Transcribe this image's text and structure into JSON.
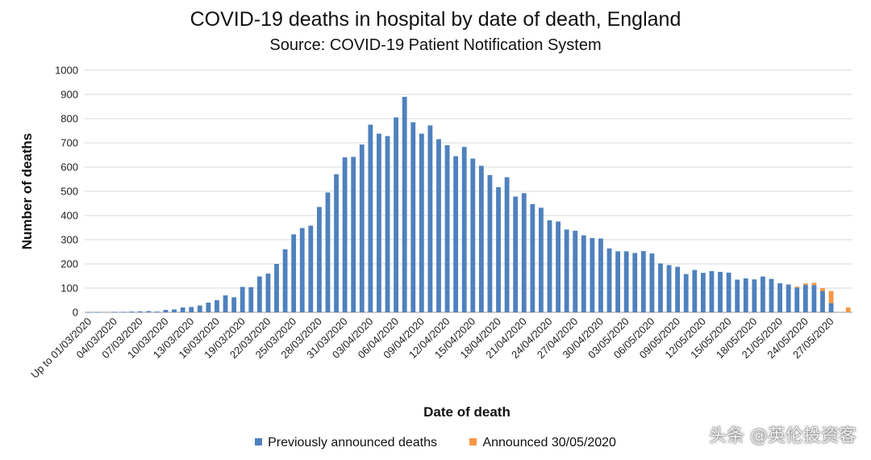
{
  "chart_data": {
    "type": "bar",
    "stacked": true,
    "title": "COVID-19 deaths in hospital by date of death, England",
    "subtitle": "Source: COVID-19 Patient Notification System",
    "xlabel": "Date of death",
    "ylabel": "Number of deaths",
    "ylim": [
      0,
      1000
    ],
    "yticks": [
      0,
      100,
      200,
      300,
      400,
      500,
      600,
      700,
      800,
      900,
      1000
    ],
    "grid": true,
    "legend_position": "bottom",
    "categories": [
      "Up to 01/03/2020",
      "02/03/2020",
      "03/03/2020",
      "04/03/2020",
      "05/03/2020",
      "06/03/2020",
      "07/03/2020",
      "08/03/2020",
      "09/03/2020",
      "10/03/2020",
      "11/03/2020",
      "12/03/2020",
      "13/03/2020",
      "14/03/2020",
      "15/03/2020",
      "16/03/2020",
      "17/03/2020",
      "18/03/2020",
      "19/03/2020",
      "20/03/2020",
      "21/03/2020",
      "22/03/2020",
      "23/03/2020",
      "24/03/2020",
      "25/03/2020",
      "26/03/2020",
      "27/03/2020",
      "28/03/2020",
      "29/03/2020",
      "30/03/2020",
      "31/03/2020",
      "01/04/2020",
      "02/04/2020",
      "03/04/2020",
      "04/04/2020",
      "05/04/2020",
      "06/04/2020",
      "07/04/2020",
      "08/04/2020",
      "09/04/2020",
      "10/04/2020",
      "11/04/2020",
      "12/04/2020",
      "13/04/2020",
      "14/04/2020",
      "15/04/2020",
      "16/04/2020",
      "17/04/2020",
      "18/04/2020",
      "19/04/2020",
      "20/04/2020",
      "21/04/2020",
      "22/04/2020",
      "23/04/2020",
      "24/04/2020",
      "25/04/2020",
      "26/04/2020",
      "27/04/2020",
      "28/04/2020",
      "29/04/2020",
      "30/04/2020",
      "01/05/2020",
      "02/05/2020",
      "03/05/2020",
      "04/05/2020",
      "05/05/2020",
      "06/05/2020",
      "07/05/2020",
      "08/05/2020",
      "09/05/2020",
      "10/05/2020",
      "11/05/2020",
      "12/05/2020",
      "13/05/2020",
      "14/05/2020",
      "15/05/2020",
      "16/05/2020",
      "17/05/2020",
      "18/05/2020",
      "19/05/2020",
      "20/05/2020",
      "21/05/2020",
      "22/05/2020",
      "23/05/2020",
      "24/05/2020",
      "25/05/2020",
      "26/05/2020",
      "27/05/2020",
      "28/05/2020",
      "29/05/2020"
    ],
    "tick_labels": [
      "Up to 01/03/2020",
      "04/03/2020",
      "07/03/2020",
      "10/03/2020",
      "13/03/2020",
      "16/03/2020",
      "19/03/2020",
      "22/03/2020",
      "25/03/2020",
      "28/03/2020",
      "31/03/2020",
      "03/04/2020",
      "06/04/2020",
      "09/04/2020",
      "12/04/2020",
      "15/04/2020",
      "18/04/2020",
      "21/04/2020",
      "24/04/2020",
      "27/04/2020",
      "30/04/2020",
      "03/05/2020",
      "06/05/2020",
      "09/05/2020",
      "12/05/2020",
      "15/05/2020",
      "18/05/2020",
      "21/05/2020",
      "24/05/2020",
      "27/05/2020"
    ],
    "series": [
      {
        "name": "Previously announced deaths",
        "color": "#4f81bd",
        "values": [
          1,
          1,
          0,
          2,
          2,
          3,
          4,
          5,
          3,
          10,
          12,
          20,
          22,
          28,
          40,
          50,
          70,
          62,
          105,
          104,
          148,
          160,
          200,
          260,
          322,
          348,
          358,
          435,
          495,
          570,
          640,
          642,
          693,
          775,
          738,
          728,
          805,
          890,
          785,
          738,
          772,
          715,
          690,
          645,
          683,
          635,
          605,
          567,
          517,
          558,
          478,
          492,
          447,
          432,
          380,
          375,
          342,
          337,
          318,
          307,
          305,
          264,
          252,
          252,
          245,
          253,
          243,
          202,
          195,
          188,
          158,
          175,
          163,
          170,
          167,
          164,
          135,
          140,
          136,
          148,
          138,
          120,
          115,
          102,
          113,
          112,
          88,
          38,
          0,
          0
        ]
      },
      {
        "name": "Announced 30/05/2020",
        "color": "#f79646",
        "values": [
          0,
          0,
          0,
          0,
          0,
          0,
          0,
          0,
          0,
          0,
          0,
          0,
          0,
          0,
          0,
          0,
          0,
          0,
          0,
          0,
          0,
          0,
          0,
          0,
          0,
          0,
          0,
          0,
          0,
          0,
          0,
          0,
          0,
          0,
          0,
          0,
          0,
          0,
          0,
          0,
          0,
          0,
          0,
          0,
          0,
          0,
          0,
          0,
          0,
          0,
          0,
          0,
          0,
          0,
          0,
          0,
          0,
          0,
          0,
          0,
          0,
          0,
          0,
          0,
          0,
          0,
          0,
          0,
          0,
          0,
          0,
          0,
          0,
          0,
          0,
          0,
          0,
          0,
          0,
          0,
          0,
          0,
          0,
          4,
          6,
          10,
          12,
          50,
          0,
          20
        ]
      }
    ]
  },
  "watermark": "头条 @英伦投资客"
}
